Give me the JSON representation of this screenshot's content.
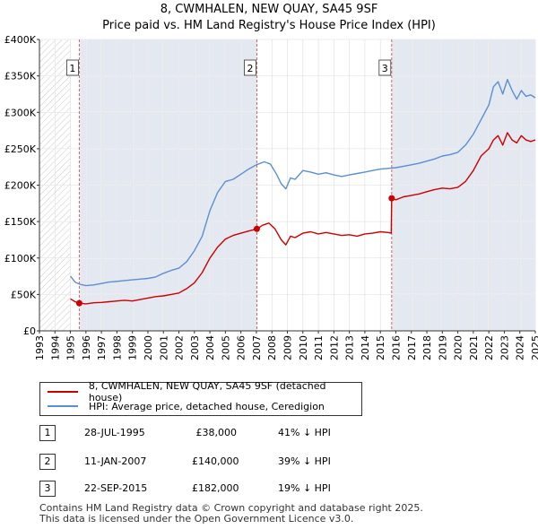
{
  "chart_data": {
    "type": "line",
    "title": "8, CWMHALEN, NEW QUAY, SA45 9SF",
    "subtitle": "Price paid vs. HM Land Registry's House Price Index (HPI)",
    "xlim": [
      1993,
      2025
    ],
    "ylim": [
      0,
      400000
    ],
    "x_ticks": [
      "1993",
      "1994",
      "1995",
      "1996",
      "1997",
      "1998",
      "1999",
      "2000",
      "2001",
      "2002",
      "2003",
      "2004",
      "2005",
      "2006",
      "2007",
      "2008",
      "2009",
      "2010",
      "2011",
      "2012",
      "2013",
      "2014",
      "2015",
      "2016",
      "2017",
      "2018",
      "2019",
      "2020",
      "2021",
      "2022",
      "2023",
      "2024",
      "2025"
    ],
    "y_tick_values": [
      0,
      50000,
      100000,
      150000,
      200000,
      250000,
      300000,
      350000,
      400000
    ],
    "y_tick_labels": [
      "£0",
      "£50K",
      "£100K",
      "£150K",
      "£200K",
      "£250K",
      "£300K",
      "£350K",
      "£400K"
    ],
    "grid": true,
    "colors": {
      "property": "#cc0000",
      "hpi": "#5b8fd0",
      "shade": "#e4e8f1",
      "marker_line": "#cc6666"
    },
    "series": [
      {
        "name": "8, CWMHALEN, NEW QUAY, SA45 9SF (detached house)",
        "x": [
          1995.0,
          1995.3,
          1995.57,
          1996.0,
          1996.5,
          1997.0,
          1997.5,
          1998.0,
          1998.5,
          1999.0,
          1999.5,
          2000.0,
          2000.5,
          2001.0,
          2001.5,
          2002.0,
          2002.5,
          2003.0,
          2003.5,
          2004.0,
          2004.5,
          2005.0,
          2005.5,
          2006.0,
          2006.5,
          2007.03,
          2007.4,
          2007.8,
          2008.2,
          2008.6,
          2008.9,
          2009.2,
          2009.5,
          2010.0,
          2010.5,
          2011.0,
          2011.5,
          2012.0,
          2012.5,
          2013.0,
          2013.5,
          2014.0,
          2014.5,
          2015.0,
          2015.5,
          2015.7,
          2015.73,
          2016.0,
          2016.5,
          2017.0,
          2017.5,
          2018.0,
          2018.5,
          2019.0,
          2019.5,
          2020.0,
          2020.5,
          2021.0,
          2021.5,
          2022.0,
          2022.3,
          2022.6,
          2022.9,
          2023.2,
          2023.5,
          2023.8,
          2024.1,
          2024.4,
          2024.7,
          2025.0
        ],
        "values": [
          44000,
          40000,
          38000,
          37000,
          38500,
          39000,
          40000,
          41000,
          42000,
          41000,
          43000,
          45000,
          47000,
          48000,
          50000,
          52000,
          58000,
          66000,
          80000,
          100000,
          115000,
          126000,
          131000,
          134000,
          137000,
          140000,
          145000,
          148000,
          140000,
          125000,
          118000,
          130000,
          128000,
          134000,
          136000,
          133000,
          135000,
          133000,
          131000,
          132000,
          130000,
          133000,
          134000,
          136000,
          135000,
          134000,
          182000,
          180000,
          184000,
          186000,
          188000,
          191000,
          194000,
          196000,
          195000,
          197000,
          205000,
          220000,
          240000,
          250000,
          262000,
          268000,
          255000,
          272000,
          262000,
          258000,
          268000,
          262000,
          260000,
          262000
        ]
      },
      {
        "name": "HPI: Average price, detached house, Ceredigion",
        "x": [
          1995.0,
          1995.3,
          1995.6,
          1996.0,
          1996.5,
          1997.0,
          1997.5,
          1998.0,
          1998.5,
          1999.0,
          1999.5,
          2000.0,
          2000.5,
          2001.0,
          2001.5,
          2002.0,
          2002.5,
          2003.0,
          2003.5,
          2004.0,
          2004.5,
          2005.0,
          2005.5,
          2006.0,
          2006.5,
          2007.0,
          2007.5,
          2007.9,
          2008.3,
          2008.6,
          2008.9,
          2009.2,
          2009.5,
          2010.0,
          2010.5,
          2011.0,
          2011.5,
          2012.0,
          2012.5,
          2013.0,
          2013.5,
          2014.0,
          2014.5,
          2015.0,
          2015.5,
          2016.0,
          2016.5,
          2017.0,
          2017.5,
          2018.0,
          2018.5,
          2019.0,
          2019.5,
          2020.0,
          2020.5,
          2021.0,
          2021.5,
          2022.0,
          2022.3,
          2022.6,
          2022.9,
          2023.2,
          2023.5,
          2023.8,
          2024.1,
          2024.4,
          2024.7,
          2025.0
        ],
        "values": [
          75000,
          67000,
          64000,
          62000,
          63000,
          65000,
          67000,
          68000,
          69000,
          70000,
          71000,
          72000,
          74000,
          79000,
          83000,
          86000,
          95000,
          110000,
          130000,
          165000,
          190000,
          205000,
          208000,
          215000,
          222000,
          228000,
          232000,
          229000,
          215000,
          202000,
          195000,
          210000,
          208000,
          220000,
          218000,
          215000,
          217000,
          214000,
          212000,
          214000,
          216000,
          218000,
          220000,
          222000,
          223000,
          224000,
          226000,
          228000,
          230000,
          233000,
          236000,
          240000,
          242000,
          245000,
          255000,
          270000,
          290000,
          310000,
          335000,
          342000,
          325000,
          345000,
          330000,
          318000,
          330000,
          322000,
          324000,
          320000
        ]
      }
    ],
    "sale_markers": [
      {
        "label": "1",
        "x": 1995.57,
        "value": 38000
      },
      {
        "label": "2",
        "x": 2007.03,
        "value": 140000
      },
      {
        "label": "3",
        "x": 2015.73,
        "value": 182000
      }
    ],
    "hatched_before": 1995.0
  },
  "legend": {
    "property_label": "8, CWMHALEN, NEW QUAY, SA45 9SF (detached house)",
    "hpi_label": "HPI: Average price, detached house, Ceredigion"
  },
  "sales": [
    {
      "num": "1",
      "date": "28-JUL-1995",
      "price": "£38,000",
      "hpi": "41% ↓ HPI"
    },
    {
      "num": "2",
      "date": "11-JAN-2007",
      "price": "£140,000",
      "hpi": "39% ↓ HPI"
    },
    {
      "num": "3",
      "date": "22-SEP-2015",
      "price": "£182,000",
      "hpi": "19% ↓ HPI"
    }
  ],
  "footer": {
    "line1": "Contains HM Land Registry data © Crown copyright and database right 2025.",
    "line2": "This data is licensed under the Open Government Licence v3.0."
  }
}
